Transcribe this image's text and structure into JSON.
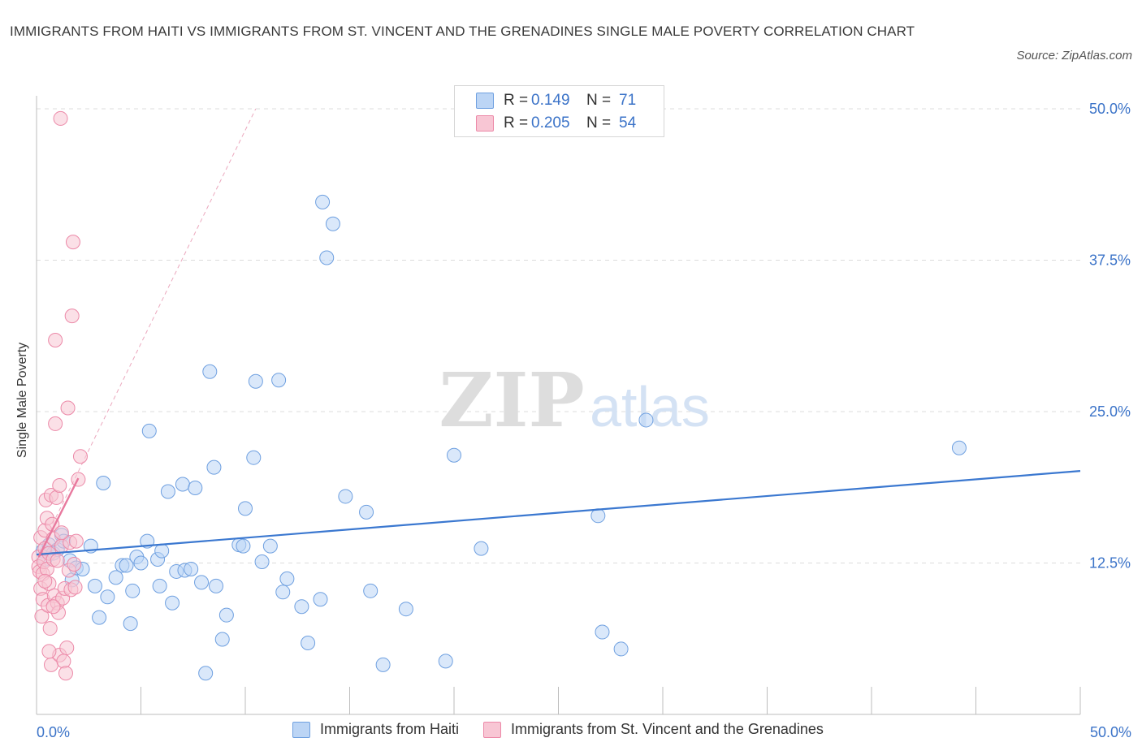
{
  "title": "IMMIGRANTS FROM HAITI VS IMMIGRANTS FROM ST. VINCENT AND THE GRENADINES SINGLE MALE POVERTY CORRELATION CHART",
  "source": "Source: ZipAtlas.com",
  "watermark": {
    "zip": "ZIP",
    "atlas": "atlas"
  },
  "legend": {
    "rows": [
      {
        "r_label": "R =",
        "r_value": "0.149",
        "n_label": "N =",
        "n_value": "71",
        "color": "#6fa0e0",
        "fill": "#bcd5f5"
      },
      {
        "r_label": "R =",
        "r_value": "0.205",
        "n_label": "N =",
        "n_value": "54",
        "color": "#ec89a8",
        "fill": "#f8c6d4"
      }
    ]
  },
  "chart_data": {
    "type": "scatter",
    "title": "IMMIGRANTS FROM HAITI VS IMMIGRANTS FROM ST. VINCENT AND THE GRENADINES SINGLE MALE POVERTY CORRELATION CHART",
    "xlabel": "",
    "ylabel": "Single Male Poverty",
    "xlim": [
      0,
      50
    ],
    "ylim": [
      0,
      50
    ],
    "x_tick_labels": [
      "0.0%",
      "50.0%"
    ],
    "y_tick_labels": [
      "12.5%",
      "25.0%",
      "37.5%",
      "50.0%"
    ],
    "y_ticks": [
      12.5,
      25.0,
      37.5,
      50.0
    ],
    "grid": true,
    "legend_position": "top-center",
    "series": [
      {
        "name": "Immigrants from Haiti",
        "color": "#3b78d0",
        "fill": "#bcd5f5",
        "trend": {
          "x": [
            0,
            50
          ],
          "y": [
            13.2,
            20.1
          ]
        },
        "points": [
          [
            0.3,
            13.5
          ],
          [
            0.4,
            12.8
          ],
          [
            0.6,
            14.0
          ],
          [
            0.8,
            13.3
          ],
          [
            1.0,
            13.6
          ],
          [
            1.2,
            14.8
          ],
          [
            1.3,
            14.3
          ],
          [
            1.6,
            12.7
          ],
          [
            1.7,
            11.1
          ],
          [
            1.9,
            12.1
          ],
          [
            2.2,
            12.0
          ],
          [
            2.6,
            13.9
          ],
          [
            2.8,
            10.6
          ],
          [
            3.0,
            8.0
          ],
          [
            3.2,
            19.1
          ],
          [
            3.4,
            9.7
          ],
          [
            3.8,
            11.3
          ],
          [
            4.1,
            12.3
          ],
          [
            4.3,
            12.3
          ],
          [
            4.5,
            7.5
          ],
          [
            4.6,
            10.2
          ],
          [
            4.8,
            13.0
          ],
          [
            5.0,
            12.5
          ],
          [
            5.3,
            14.3
          ],
          [
            5.4,
            23.4
          ],
          [
            5.8,
            12.8
          ],
          [
            5.9,
            10.6
          ],
          [
            6.0,
            13.5
          ],
          [
            6.3,
            18.4
          ],
          [
            6.5,
            9.2
          ],
          [
            6.7,
            11.8
          ],
          [
            7.0,
            19.0
          ],
          [
            7.1,
            11.9
          ],
          [
            7.4,
            12.0
          ],
          [
            7.6,
            18.7
          ],
          [
            7.9,
            10.9
          ],
          [
            8.1,
            3.4
          ],
          [
            8.3,
            28.3
          ],
          [
            8.5,
            20.4
          ],
          [
            8.6,
            10.6
          ],
          [
            8.9,
            6.2
          ],
          [
            9.1,
            8.2
          ],
          [
            9.7,
            14.0
          ],
          [
            9.9,
            13.9
          ],
          [
            10.0,
            17.0
          ],
          [
            10.4,
            21.2
          ],
          [
            10.5,
            27.5
          ],
          [
            10.8,
            12.6
          ],
          [
            11.2,
            13.9
          ],
          [
            11.6,
            27.6
          ],
          [
            11.8,
            10.1
          ],
          [
            12.0,
            11.2
          ],
          [
            12.7,
            8.9
          ],
          [
            13.0,
            5.9
          ],
          [
            13.6,
            9.5
          ],
          [
            13.7,
            42.3
          ],
          [
            13.9,
            37.7
          ],
          [
            14.2,
            40.5
          ],
          [
            14.8,
            18.0
          ],
          [
            15.8,
            16.7
          ],
          [
            16.0,
            10.2
          ],
          [
            16.6,
            4.1
          ],
          [
            17.7,
            8.7
          ],
          [
            19.6,
            4.4
          ],
          [
            20.0,
            21.4
          ],
          [
            21.3,
            13.7
          ],
          [
            26.9,
            16.4
          ],
          [
            27.1,
            6.8
          ],
          [
            28.0,
            5.4
          ],
          [
            29.2,
            24.3
          ],
          [
            44.2,
            22.0
          ]
        ]
      },
      {
        "name": "Immigrants from St. Vincent and the Grenadines",
        "color": "#e8799e",
        "fill": "#f8c6d4",
        "trend": {
          "x": [
            0.1,
            2.0
          ],
          "y": [
            13.0,
            19.5
          ]
        },
        "trend_dashed": {
          "x": [
            0.0,
            10.5
          ],
          "y": [
            13.0,
            50.0
          ]
        },
        "points": [
          [
            0.1,
            13.0
          ],
          [
            0.1,
            12.2
          ],
          [
            0.15,
            11.8
          ],
          [
            0.2,
            14.6
          ],
          [
            0.2,
            10.4
          ],
          [
            0.25,
            8.1
          ],
          [
            0.3,
            9.5
          ],
          [
            0.3,
            11.6
          ],
          [
            0.35,
            12.6
          ],
          [
            0.4,
            13.7
          ],
          [
            0.4,
            15.2
          ],
          [
            0.45,
            17.7
          ],
          [
            0.5,
            16.2
          ],
          [
            0.5,
            12.0
          ],
          [
            0.55,
            9.0
          ],
          [
            0.6,
            10.8
          ],
          [
            0.6,
            13.3
          ],
          [
            0.65,
            7.1
          ],
          [
            0.7,
            4.1
          ],
          [
            0.7,
            18.1
          ],
          [
            0.75,
            15.7
          ],
          [
            0.8,
            14.5
          ],
          [
            0.8,
            12.8
          ],
          [
            0.85,
            9.8
          ],
          [
            0.9,
            30.9
          ],
          [
            0.9,
            24.0
          ],
          [
            0.95,
            17.9
          ],
          [
            1.0,
            12.7
          ],
          [
            1.0,
            9.2
          ],
          [
            1.05,
            8.4
          ],
          [
            1.1,
            4.9
          ],
          [
            1.1,
            18.9
          ],
          [
            1.15,
            49.2
          ],
          [
            1.2,
            13.9
          ],
          [
            1.25,
            9.6
          ],
          [
            1.3,
            4.4
          ],
          [
            1.35,
            10.4
          ],
          [
            1.4,
            3.4
          ],
          [
            1.45,
            5.5
          ],
          [
            1.5,
            25.3
          ],
          [
            1.55,
            11.9
          ],
          [
            1.6,
            14.2
          ],
          [
            1.65,
            10.3
          ],
          [
            1.7,
            32.9
          ],
          [
            1.75,
            39.0
          ],
          [
            1.8,
            12.4
          ],
          [
            1.85,
            10.5
          ],
          [
            1.9,
            14.3
          ],
          [
            2.0,
            19.4
          ],
          [
            2.1,
            21.3
          ],
          [
            0.6,
            5.2
          ],
          [
            0.8,
            8.9
          ],
          [
            0.4,
            11.0
          ],
          [
            1.2,
            15.0
          ]
        ]
      }
    ]
  },
  "bottom_legend": {
    "items": [
      {
        "label": "Immigrants from Haiti",
        "color": "#6fa0e0",
        "fill": "#bcd5f5"
      },
      {
        "label": "Immigrants from St. Vincent and the Grenadines",
        "color": "#ec89a8",
        "fill": "#f8c6d4"
      }
    ]
  }
}
